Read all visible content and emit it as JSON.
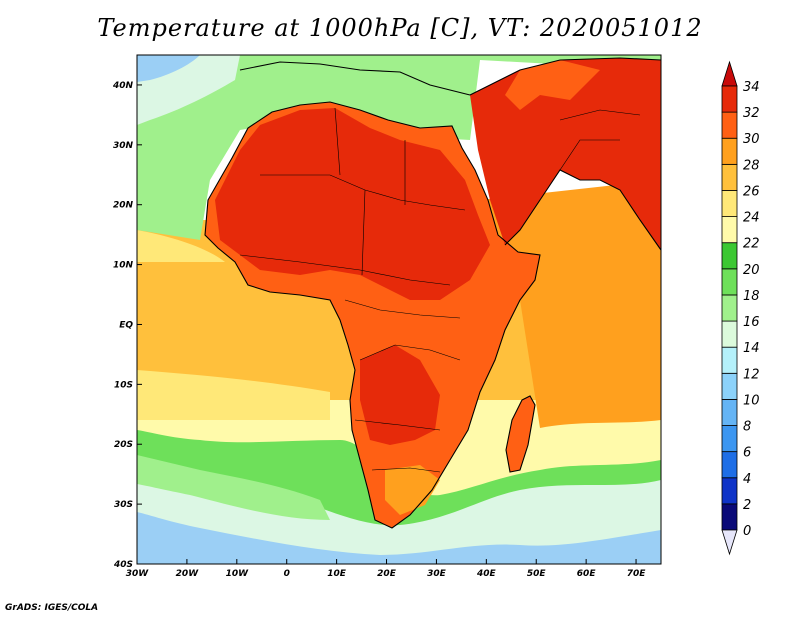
{
  "title": "Temperature at 1000hPa [C], VT: 2020051012",
  "credit": "GrADS: IGES/COLA",
  "map": {
    "lon_range": [
      -30,
      75
    ],
    "lat_range": [
      -40,
      45
    ],
    "lon_ticks": [
      {
        "lon": -30,
        "label": "30W"
      },
      {
        "lon": -20,
        "label": "20W"
      },
      {
        "lon": -10,
        "label": "10W"
      },
      {
        "lon": 0,
        "label": "0"
      },
      {
        "lon": 10,
        "label": "10E"
      },
      {
        "lon": 20,
        "label": "20E"
      },
      {
        "lon": 30,
        "label": "30E"
      },
      {
        "lon": 40,
        "label": "40E"
      },
      {
        "lon": 50,
        "label": "50E"
      },
      {
        "lon": 60,
        "label": "60E"
      },
      {
        "lon": 70,
        "label": "70E"
      }
    ],
    "lat_ticks": [
      {
        "lat": 40,
        "label": "40N"
      },
      {
        "lat": 30,
        "label": "30N"
      },
      {
        "lat": 20,
        "label": "20N"
      },
      {
        "lat": 10,
        "label": "10N"
      },
      {
        "lat": 0,
        "label": "EQ"
      },
      {
        "lat": -10,
        "label": "10S"
      },
      {
        "lat": -20,
        "label": "20S"
      },
      {
        "lat": -30,
        "label": "30S"
      },
      {
        "lat": -40,
        "label": "40S"
      }
    ]
  },
  "colorbar": {
    "levels": [
      "0",
      "2",
      "4",
      "6",
      "8",
      "10",
      "12",
      "14",
      "16",
      "18",
      "20",
      "22",
      "24",
      "26",
      "28",
      "30",
      "32",
      "34"
    ],
    "colors": [
      "#0a0a78",
      "#0f34c8",
      "#1e6ee6",
      "#3c96f0",
      "#64b4f5",
      "#8cd2fa",
      "#b4f0fa",
      "#dcfadc",
      "#a0f08c",
      "#6ee05a",
      "#3cc832",
      "#fffaaa",
      "#ffe878",
      "#ffc03c",
      "#ffa01e",
      "#ff6014",
      "#e62a0a",
      "#c80a0a"
    ],
    "below_color": "#e6e6fa"
  },
  "colors": {
    "ocean_s_cool": "#9bcff5",
    "ocean_s_mild": "#dcf7e4",
    "ocean_s_green": "#6ee05a",
    "ocean_trop": "#ffc03c",
    "ocean_n": "#a0f08c",
    "land_hot": "#e62a0a",
    "land_warm": "#ff6014",
    "land_mild": "#ffa01e",
    "coast": "#000000"
  }
}
